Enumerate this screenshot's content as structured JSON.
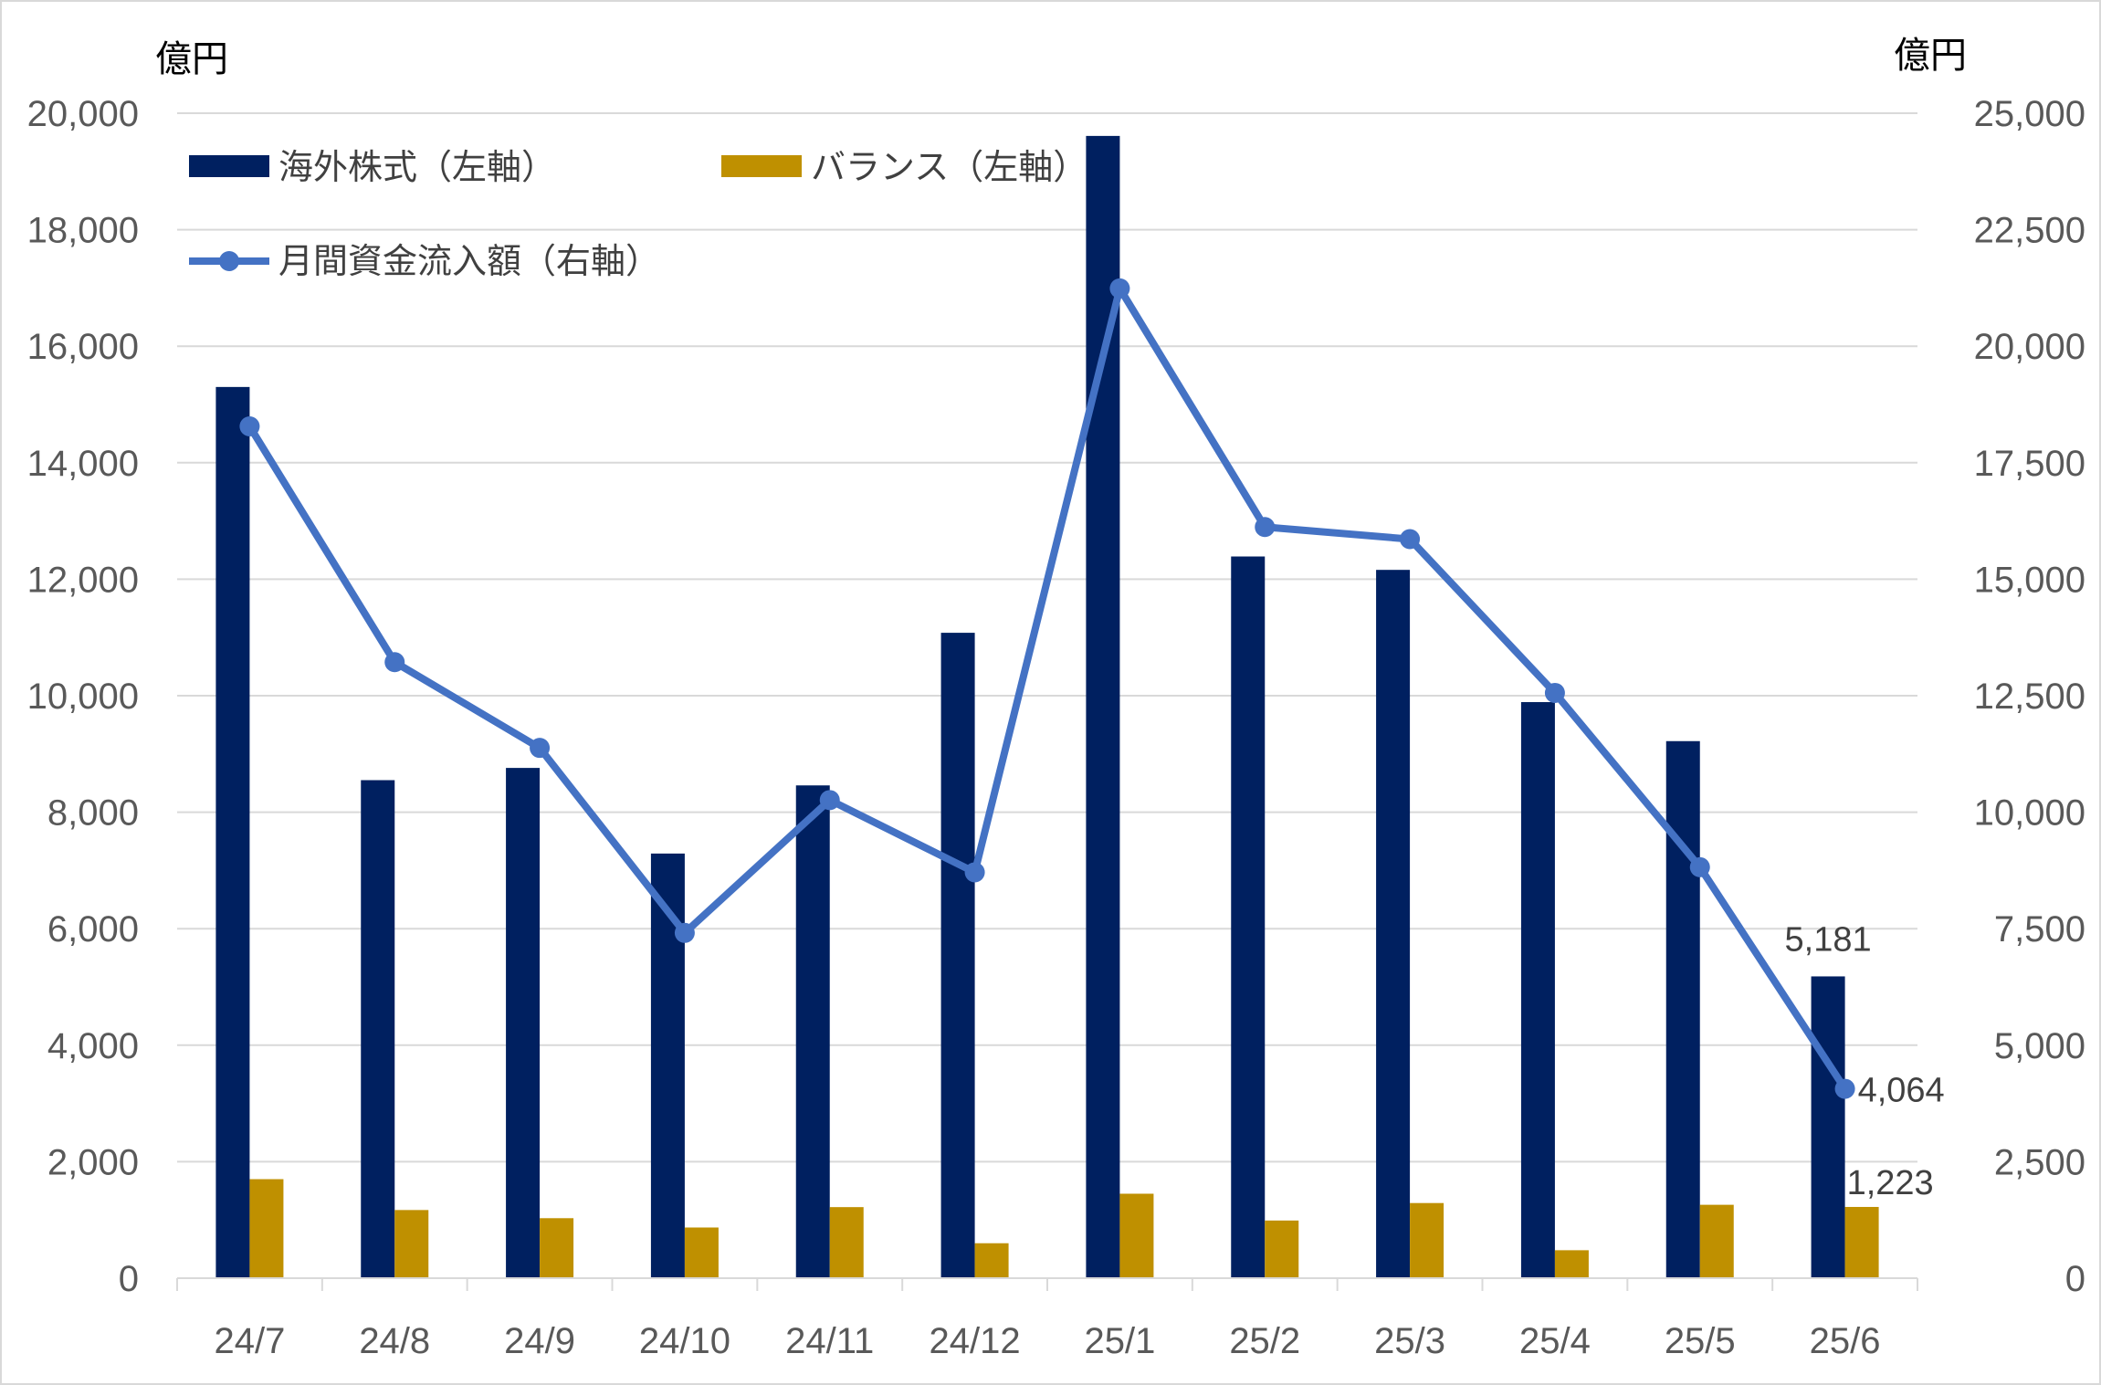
{
  "chart_data": {
    "type": "bar+line",
    "categories": [
      "24/7",
      "24/8",
      "24/9",
      "24/10",
      "24/11",
      "24/12",
      "25/1",
      "25/2",
      "25/3",
      "25/4",
      "25/5",
      "25/6"
    ],
    "left_axis": {
      "unit": "億円",
      "ylim": [
        0,
        20000
      ],
      "ticks": [
        0,
        2000,
        4000,
        6000,
        8000,
        10000,
        12000,
        14000,
        16000,
        18000,
        20000
      ],
      "tick_labels": [
        "0",
        "2,000",
        "4,000",
        "6,000",
        "8,000",
        "10,000",
        "12,000",
        "14,000",
        "16,000",
        "18,000",
        "20,000"
      ]
    },
    "right_axis": {
      "unit": "億円",
      "ylim": [
        0,
        25000
      ],
      "ticks": [
        0,
        2500,
        5000,
        7500,
        10000,
        12500,
        15000,
        17500,
        20000,
        22500,
        25000
      ],
      "tick_labels": [
        "0",
        "2,500",
        "5,000",
        "7,500",
        "10,000",
        "12,500",
        "15,000",
        "17,500",
        "20,000",
        "22,500",
        "25,000"
      ]
    },
    "grid": true,
    "legend_position": "top-left",
    "series": [
      {
        "name": "海外株式（左軸）",
        "type": "bar",
        "axis": "left",
        "color": "#002060",
        "values": [
          15300,
          8550,
          8760,
          7290,
          8460,
          11080,
          19610,
          12390,
          12160,
          9890,
          9220,
          5181
        ]
      },
      {
        "name": "バランス（左軸）",
        "type": "bar",
        "axis": "left",
        "color": "#BF9000",
        "values": [
          1700,
          1170,
          1030,
          870,
          1220,
          600,
          1450,
          990,
          1290,
          480,
          1260,
          1223
        ]
      },
      {
        "name": "月間資金流入額（右軸）",
        "type": "line",
        "axis": "right",
        "color": "#4472C4",
        "values": [
          18280,
          13220,
          11380,
          7410,
          10260,
          8710,
          21240,
          16120,
          15860,
          12560,
          8820,
          4064
        ]
      }
    ],
    "data_labels": [
      {
        "series": 0,
        "index": 11,
        "text": "5,181"
      },
      {
        "series": 2,
        "index": 11,
        "text": "4,064"
      },
      {
        "series": 1,
        "index": 11,
        "text": "1,223"
      }
    ]
  }
}
